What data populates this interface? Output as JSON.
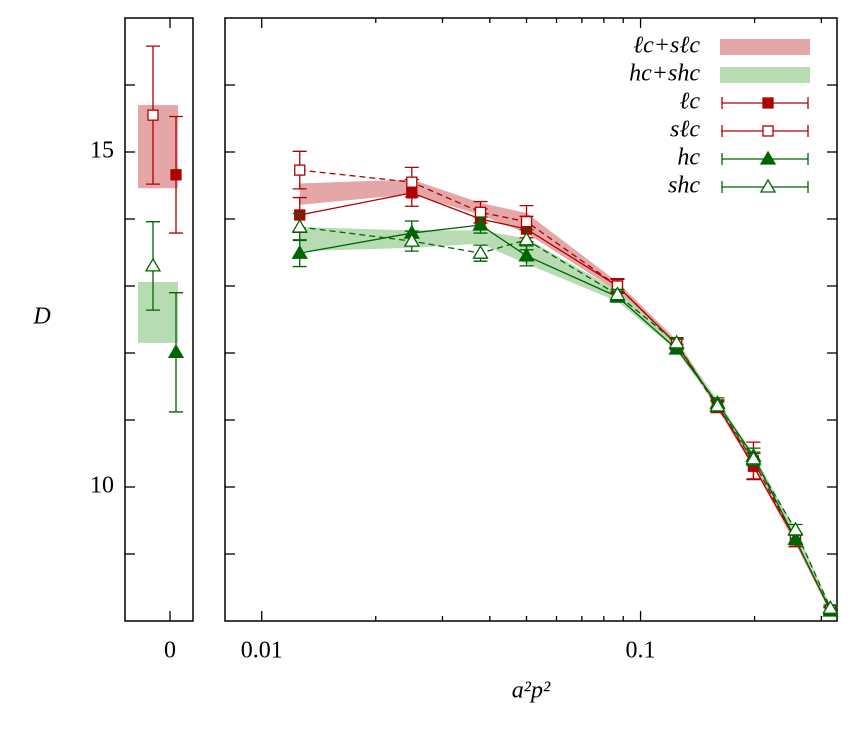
{
  "chart_data": {
    "type": "errorbar",
    "xlabel": "a²p²",
    "ylabel": "D",
    "xscale": "log",
    "legend": "top-right",
    "x0_label": "0",
    "xlim": [
      0.008,
      0.33
    ],
    "xticks": [
      0.01,
      0.1
    ],
    "xminorticks": [
      0.02,
      0.03,
      0.04,
      0.05,
      0.06,
      0.07,
      0.08,
      0.09,
      0.2,
      0.3
    ],
    "ylim": [
      8,
      17
    ],
    "yticks": [
      10,
      15
    ],
    "yminorticks": [
      9,
      11,
      12,
      13,
      14,
      16
    ],
    "x": [
      0.0126,
      0.0249,
      0.0378,
      0.05,
      0.0869,
      0.1245,
      0.1596,
      0.1986,
      0.2564,
      0.317
    ],
    "bands": [
      {
        "name": "ℓc+sℓc",
        "color": "#e4a6a6",
        "lower": [
          14.21,
          14.37,
          14.06,
          13.79,
          12.92,
          12.07,
          11.16,
          10.29,
          9.15,
          8.12
        ],
        "upper": [
          14.53,
          14.59,
          14.24,
          14.09,
          13.06,
          12.19,
          11.28,
          10.43,
          9.29,
          8.24
        ],
        "x0_lower": 14.46,
        "x0_upper": 15.7
      },
      {
        "name": "hc+shc",
        "color": "#b7dcb3",
        "lower": [
          13.52,
          13.57,
          13.63,
          13.33,
          12.77,
          12.04,
          11.18,
          10.35,
          9.23,
          8.1
        ],
        "upper": [
          13.88,
          13.83,
          13.83,
          13.71,
          12.93,
          12.16,
          11.3,
          10.49,
          9.37,
          8.22
        ],
        "x0_lower": 12.15,
        "x0_upper": 13.06
      }
    ],
    "series": [
      {
        "name": "ℓc",
        "color": "#b00000",
        "marker": "square",
        "filled": true,
        "dashed": false,
        "values": [
          14.06,
          14.39,
          14.0,
          13.85,
          13.0,
          12.13,
          11.22,
          10.31,
          9.21,
          8.16
        ],
        "errors": [
          0.26,
          0.2,
          0.15,
          0.19,
          0.11,
          0.08,
          0.08,
          0.19,
          0.1,
          0.05
        ],
        "x0_value": 14.66,
        "x0_error": 0.87
      },
      {
        "name": "sℓc",
        "color": "#b00000",
        "marker": "square",
        "filled": false,
        "dashed": true,
        "values": [
          14.73,
          14.55,
          14.1,
          13.96,
          13.0,
          12.13,
          11.19,
          10.39,
          9.21,
          8.16
        ],
        "errors": [
          0.28,
          0.22,
          0.16,
          0.24,
          0.1,
          0.08,
          0.08,
          0.28,
          0.1,
          0.05
        ],
        "x0_value": 15.55,
        "x0_error": 1.03
      },
      {
        "name": "hc",
        "color": "#006400",
        "marker": "triangle",
        "filled": true,
        "dashed": false,
        "values": [
          13.49,
          13.79,
          13.91,
          13.45,
          12.84,
          12.06,
          11.25,
          10.46,
          9.22,
          8.15
        ],
        "errors": [
          0.2,
          0.18,
          0.12,
          0.15,
          0.08,
          0.07,
          0.08,
          0.12,
          0.08,
          0.05
        ],
        "x0_value": 12.01,
        "x0_error": 0.89
      },
      {
        "name": "shc",
        "color": "#006400",
        "marker": "triangle",
        "filled": false,
        "dashed": true,
        "values": [
          13.88,
          13.67,
          13.49,
          13.69,
          12.87,
          12.15,
          11.21,
          10.42,
          9.36,
          8.19
        ],
        "errors": [
          0.2,
          0.15,
          0.12,
          0.15,
          0.08,
          0.08,
          0.08,
          0.1,
          0.08,
          0.05
        ],
        "x0_value": 13.3,
        "x0_error": 0.66
      }
    ]
  }
}
